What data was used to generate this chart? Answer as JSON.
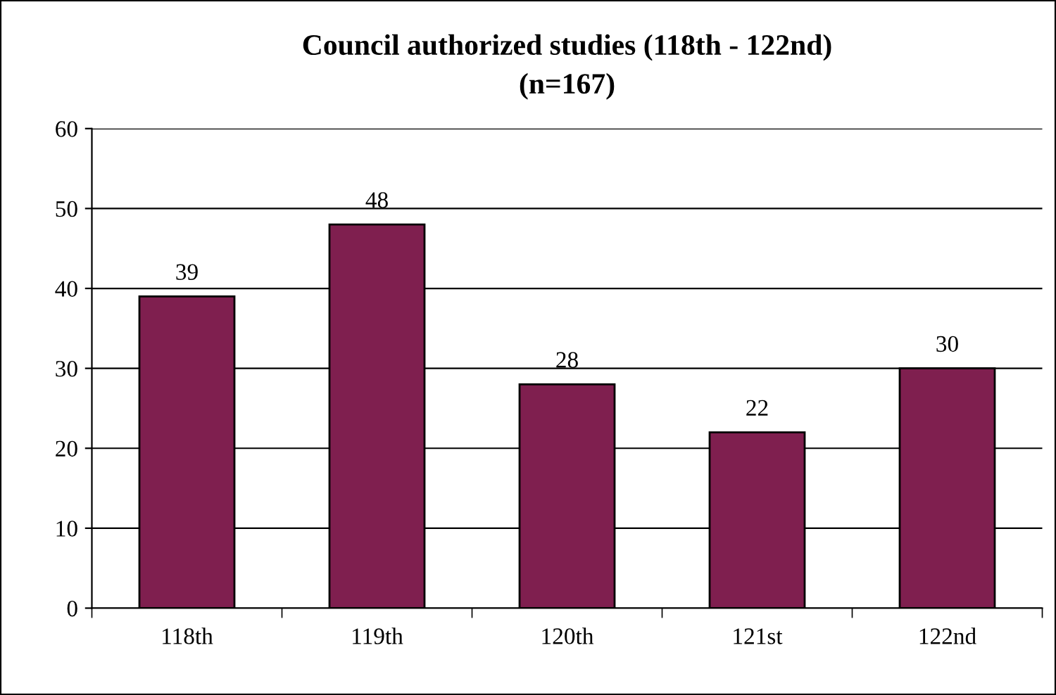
{
  "chart_data": {
    "type": "bar",
    "title": "Council authorized studies (118th - 122nd)\n(n=167)",
    "categories": [
      "118th",
      "119th",
      "120th",
      "121st",
      "122nd"
    ],
    "values": [
      39,
      48,
      28,
      22,
      30
    ],
    "color": "#7f1f4f",
    "ylim": [
      0,
      60
    ],
    "yticks": [
      0,
      10,
      20,
      30,
      40,
      50,
      60
    ],
    "grid": "y",
    "data_labels": true
  }
}
